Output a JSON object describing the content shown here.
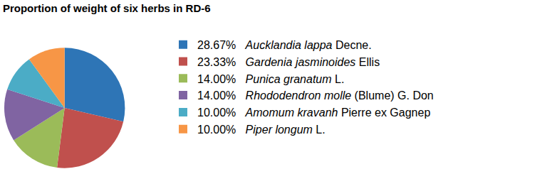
{
  "chart_data": {
    "type": "pie",
    "title": "Proportion of weight of six herbs in RD-6",
    "categories": [
      "Aucklandia lappa Decne.",
      "Gardenia jasminoides Ellis",
      "Punica granatum L.",
      "Rhododendron molle (Blume) G. Don",
      "Amomum kravanh Pierre ex Gagnep",
      "Piper longum L."
    ],
    "values": [
      28.67,
      23.33,
      14.0,
      14.0,
      10.0,
      10.0
    ],
    "value_labels": [
      "28.67%",
      "23.33%",
      "14.00%",
      "14.00%",
      "10.00%",
      "10.00%"
    ],
    "colors": [
      "#2e75b6",
      "#c0504d",
      "#9bbb59",
      "#8064a2",
      "#4bacc6",
      "#f79646"
    ],
    "legend": "right"
  }
}
